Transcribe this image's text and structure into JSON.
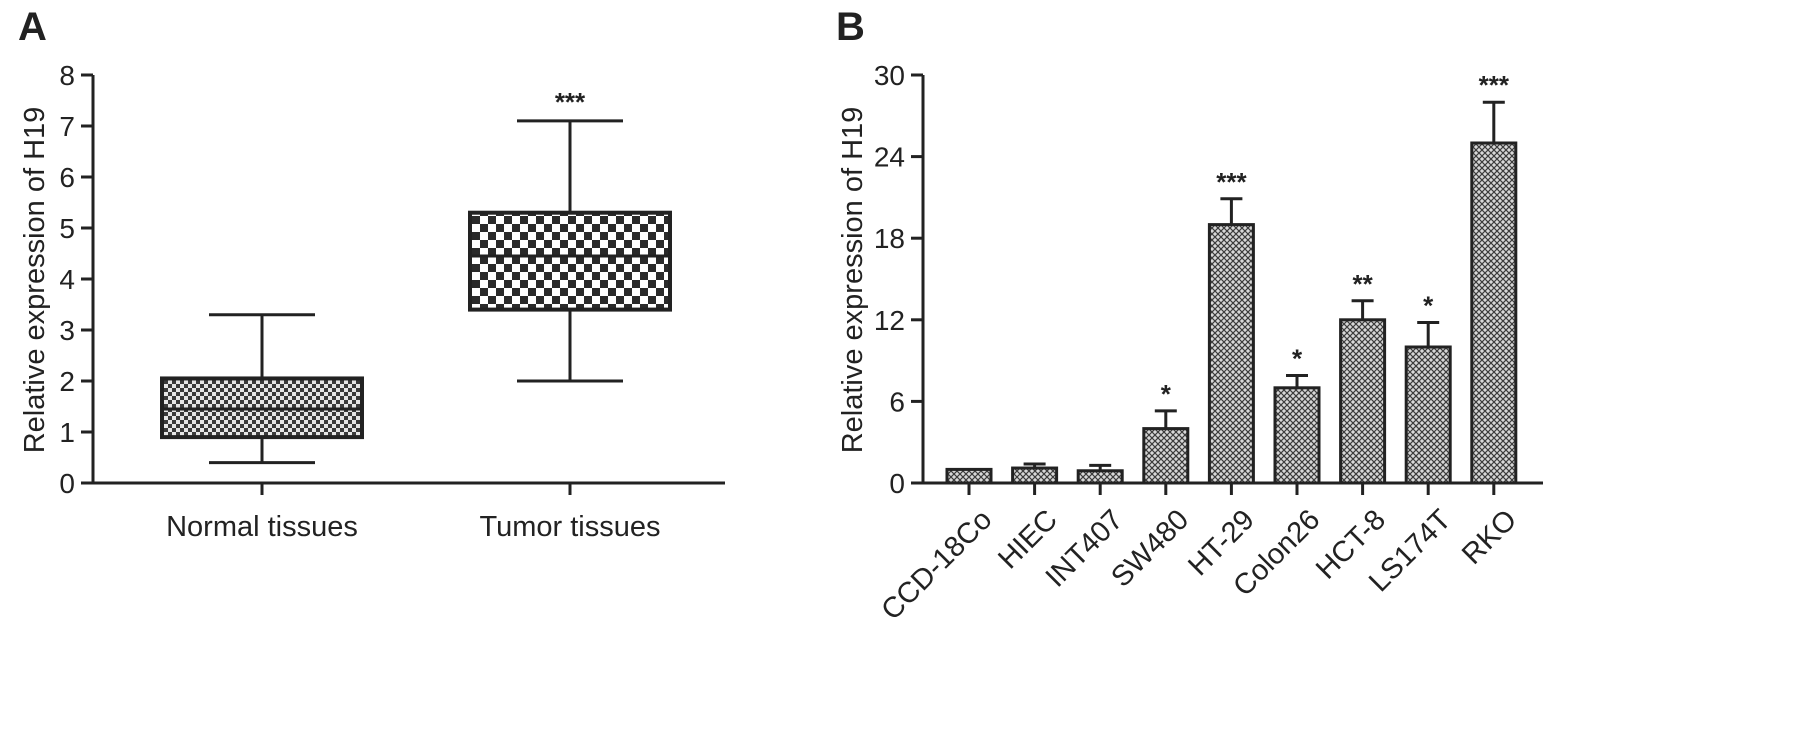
{
  "chart_data": [
    {
      "panel": "A",
      "type": "box",
      "ylabel": "Relative expression of H19",
      "ylim": [
        0,
        8
      ],
      "yticks": [
        "0",
        "1",
        "2",
        "3",
        "4",
        "5",
        "6",
        "7",
        "8"
      ],
      "categories": [
        "Normal tissues",
        "Tumor tissues"
      ],
      "boxes": [
        {
          "category": "Normal tissues",
          "min": 0.4,
          "q1": 0.9,
          "median": 1.45,
          "q3": 2.05,
          "max": 3.3,
          "significance": ""
        },
        {
          "category": "Tumor tissues",
          "min": 2.0,
          "q1": 3.4,
          "median": 4.45,
          "q3": 5.3,
          "max": 7.1,
          "significance": "***"
        }
      ]
    },
    {
      "panel": "B",
      "type": "bar",
      "ylabel": "Relative expression of H19",
      "ylim": [
        0,
        30
      ],
      "yticks": [
        "0",
        "6",
        "12",
        "18",
        "24",
        "30"
      ],
      "categories": [
        "CCD-18Co",
        "HIEC",
        "INT407",
        "SW480",
        "HT-29",
        "Colon26",
        "HCT-8",
        "LS174T",
        "RKO"
      ],
      "values": [
        1.0,
        1.1,
        0.9,
        4.0,
        19.0,
        7.0,
        12.0,
        10.0,
        25.0
      ],
      "errors": [
        0.0,
        0.3,
        0.4,
        1.3,
        1.9,
        0.9,
        1.4,
        1.8,
        3.0
      ],
      "significance": [
        "",
        "",
        "",
        "*",
        "***",
        "*",
        "**",
        "*",
        "***"
      ]
    }
  ],
  "colors": {
    "box_fill_pattern": "checkerboard",
    "bar_fill_pattern": "crosshatch",
    "ink": "#222222"
  }
}
